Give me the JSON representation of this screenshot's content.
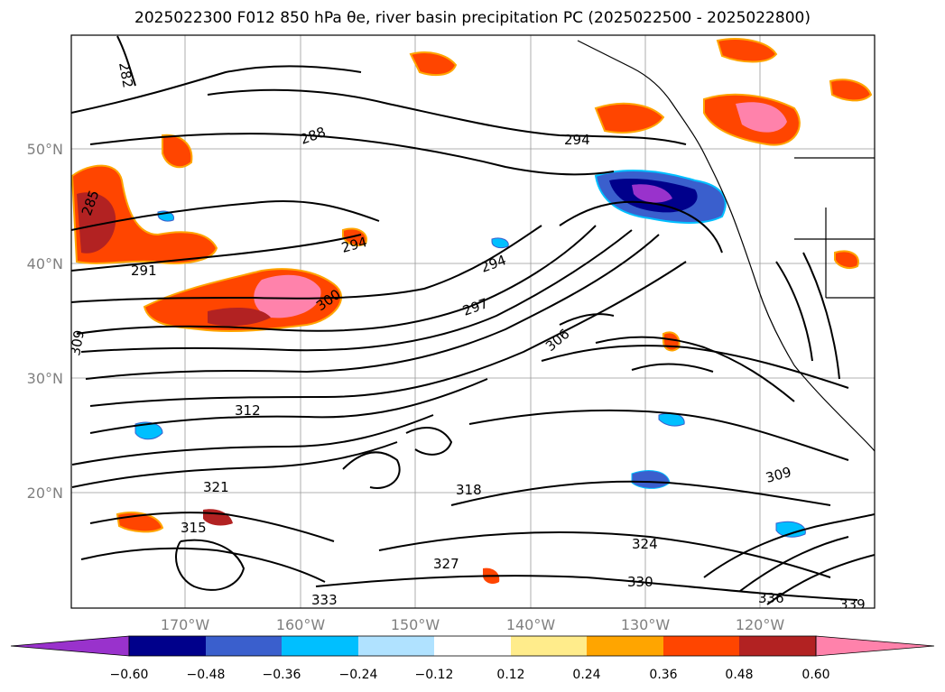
{
  "title": "2025022300 F012 850 hPa θe, river basin precipitation PC (2025022500 - 2025022800)",
  "map": {
    "lat_labels": [
      "50°N",
      "40°N",
      "30°N",
      "20°N"
    ],
    "lon_labels": [
      "170°W",
      "160°W",
      "150°W",
      "140°W",
      "130°W",
      "120°W"
    ],
    "contour_labels": [
      "282",
      "285",
      "288",
      "291",
      "294",
      "294",
      "294",
      "297",
      "300",
      "306",
      "309",
      "309",
      "312",
      "315",
      "318",
      "321",
      "324",
      "327",
      "330",
      "333",
      "336",
      "339"
    ]
  },
  "colorbar": {
    "ticks": [
      "−0.60",
      "−0.48",
      "−0.36",
      "−0.24",
      "−0.12",
      "0.12",
      "0.24",
      "0.36",
      "0.48",
      "0.60"
    ],
    "colors": [
      "#9932cc",
      "#00008b",
      "#3a5fcd",
      "#00bfff",
      "#b0e2ff",
      "#ffffff",
      "#ffec8b",
      "#ffa500",
      "#ff4500",
      "#b22222",
      "#ff82ab"
    ]
  }
}
